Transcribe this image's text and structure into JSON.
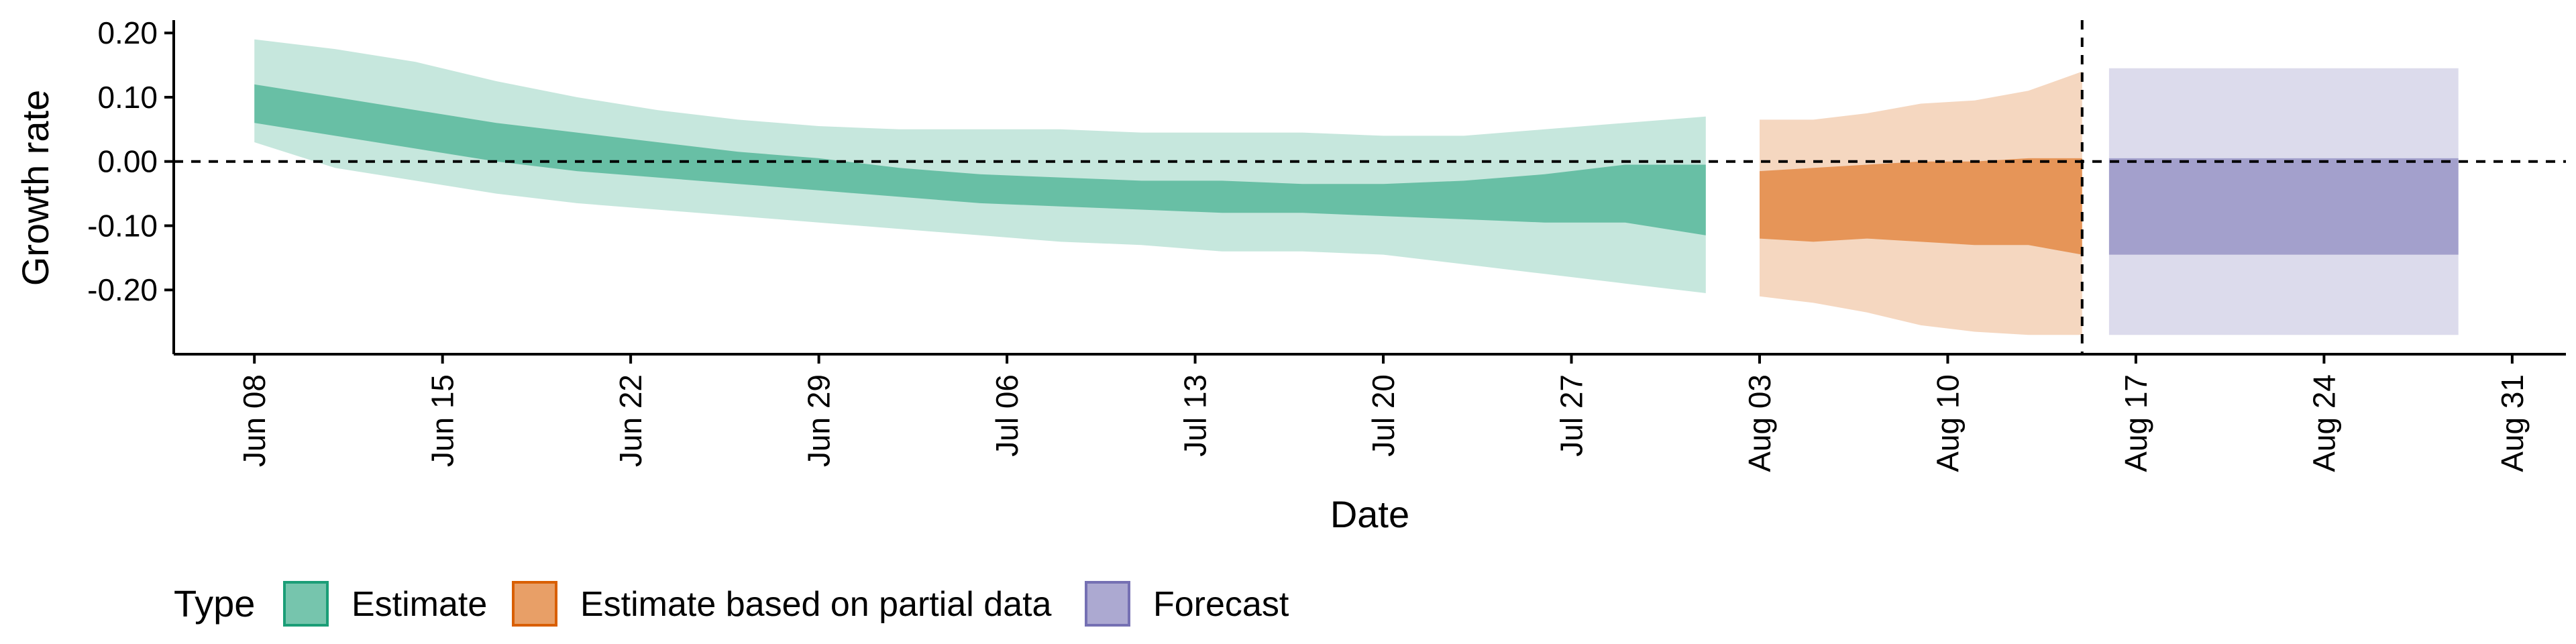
{
  "chart_data": {
    "type": "area",
    "title": "",
    "xlabel": "Date",
    "ylabel": "Growth rate",
    "xlim": [
      "2020-06-05",
      "2020-09-02"
    ],
    "ylim": [
      -0.3,
      0.22
    ],
    "y_ticks": [
      0.2,
      0.1,
      0.0,
      -0.1,
      -0.2
    ],
    "y_tick_labels": [
      "0.20",
      "0.10",
      "0.00",
      "-0.10",
      "-0.20"
    ],
    "x_ticks": [
      "2020-06-08",
      "2020-06-15",
      "2020-06-22",
      "2020-06-29",
      "2020-07-06",
      "2020-07-13",
      "2020-07-20",
      "2020-07-27",
      "2020-08-03",
      "2020-08-10",
      "2020-08-17",
      "2020-08-24",
      "2020-08-31"
    ],
    "x_tick_labels": [
      "Jun 08",
      "Jun 15",
      "Jun 22",
      "Jun 29",
      "Jul 06",
      "Jul 13",
      "Jul 20",
      "Jul 27",
      "Aug 03",
      "Aug 10",
      "Aug 17",
      "Aug 24",
      "Aug 31"
    ],
    "reference_lines": {
      "horizontal_y": 0.0,
      "vertical_x": "2020-08-15"
    },
    "legend": {
      "title": "Type",
      "position": "bottom",
      "entries": [
        {
          "label": "Estimate",
          "color": "#1b9e77"
        },
        {
          "label": "Estimate based on partial data",
          "color": "#d95f02"
        },
        {
          "label": "Forecast",
          "color": "#7570b3"
        }
      ]
    },
    "series": [
      {
        "name": "Estimate",
        "color": "#1b9e77",
        "x": [
          "2020-06-08",
          "2020-06-11",
          "2020-06-14",
          "2020-06-17",
          "2020-06-20",
          "2020-06-23",
          "2020-06-26",
          "2020-06-29",
          "2020-07-02",
          "2020-07-05",
          "2020-07-08",
          "2020-07-11",
          "2020-07-14",
          "2020-07-17",
          "2020-07-20",
          "2020-07-23",
          "2020-07-26",
          "2020-07-29",
          "2020-08-01"
        ],
        "outer_low": [
          0.03,
          -0.01,
          -0.03,
          -0.05,
          -0.065,
          -0.075,
          -0.085,
          -0.095,
          -0.105,
          -0.115,
          -0.125,
          -0.13,
          -0.14,
          -0.14,
          -0.145,
          -0.16,
          -0.175,
          -0.19,
          -0.205
        ],
        "inner_low": [
          0.06,
          0.04,
          0.02,
          0.0,
          -0.015,
          -0.025,
          -0.035,
          -0.045,
          -0.055,
          -0.065,
          -0.07,
          -0.075,
          -0.08,
          -0.08,
          -0.085,
          -0.09,
          -0.095,
          -0.095,
          -0.115
        ],
        "inner_high": [
          0.12,
          0.1,
          0.08,
          0.06,
          0.045,
          0.03,
          0.015,
          0.005,
          -0.01,
          -0.02,
          -0.025,
          -0.03,
          -0.03,
          -0.035,
          -0.035,
          -0.03,
          -0.02,
          -0.005,
          -0.005
        ],
        "outer_high": [
          0.19,
          0.175,
          0.155,
          0.125,
          0.1,
          0.08,
          0.065,
          0.055,
          0.05,
          0.05,
          0.05,
          0.045,
          0.045,
          0.045,
          0.04,
          0.04,
          0.05,
          0.06,
          0.07
        ]
      },
      {
        "name": "Estimate based on partial data",
        "color": "#d95f02",
        "x": [
          "2020-08-03",
          "2020-08-05",
          "2020-08-07",
          "2020-08-09",
          "2020-08-11",
          "2020-08-13",
          "2020-08-15"
        ],
        "outer_low": [
          -0.21,
          -0.22,
          -0.235,
          -0.255,
          -0.265,
          -0.27,
          -0.27
        ],
        "inner_low": [
          -0.12,
          -0.125,
          -0.12,
          -0.125,
          -0.13,
          -0.13,
          -0.145
        ],
        "inner_high": [
          -0.015,
          -0.01,
          -0.005,
          0.0,
          0.0,
          0.005,
          0.005
        ],
        "outer_high": [
          0.065,
          0.065,
          0.075,
          0.09,
          0.095,
          0.11,
          0.14
        ]
      },
      {
        "name": "Forecast",
        "color": "#7570b3",
        "x": [
          "2020-08-16",
          "2020-08-29"
        ],
        "outer_low": [
          -0.27,
          -0.27
        ],
        "inner_low": [
          -0.145,
          -0.145
        ],
        "inner_high": [
          0.005,
          0.005
        ],
        "outer_high": [
          0.145,
          0.145
        ]
      }
    ]
  }
}
